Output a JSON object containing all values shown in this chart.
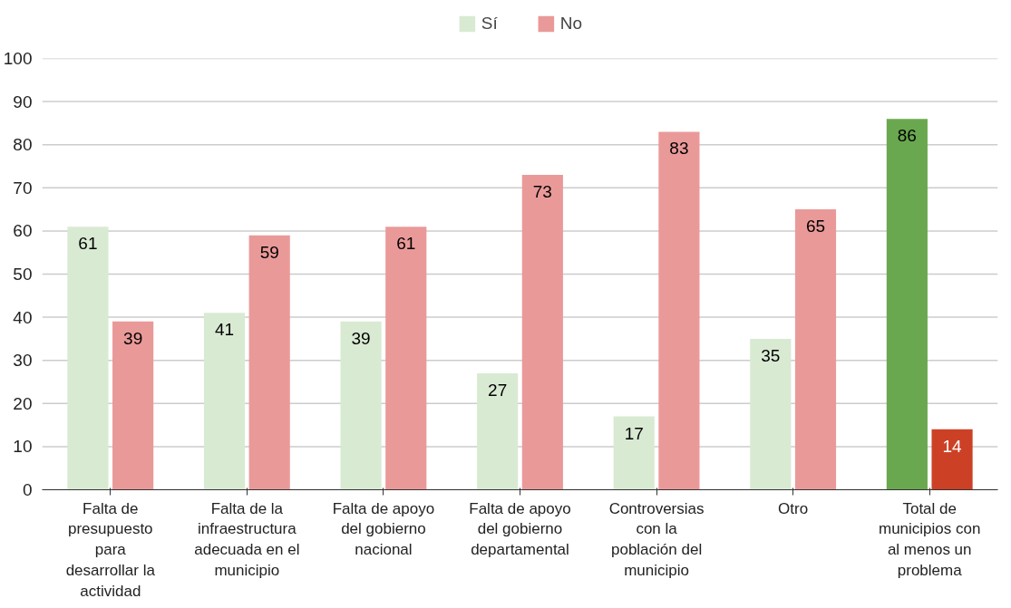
{
  "chart_data": {
    "type": "bar",
    "categories": [
      "Falta de presupuesto para desarrollar la actividad",
      "Falta de la infraestructura adecuada en el municipio",
      "Falta de apoyo del gobierno nacional",
      "Falta de apoyo del gobierno departamental",
      "Controversias con la población del municipio",
      "Otro",
      "Total de municipios con al menos un problema"
    ],
    "series": [
      {
        "name": "Sí",
        "color": "#d9ead3",
        "colors": [
          "#d9ead3",
          "#d9ead3",
          "#d9ead3",
          "#d9ead3",
          "#d9ead3",
          "#d9ead3",
          "#6aa84f"
        ],
        "values": [
          61,
          41,
          39,
          27,
          17,
          35,
          86
        ]
      },
      {
        "name": "No",
        "color": "#ea9999",
        "colors": [
          "#ea9999",
          "#ea9999",
          "#ea9999",
          "#ea9999",
          "#ea9999",
          "#ea9999",
          "#cc4125"
        ],
        "values": [
          39,
          59,
          61,
          73,
          83,
          65,
          14
        ]
      }
    ],
    "ylim": [
      0,
      100
    ],
    "yticks": [
      0,
      10,
      20,
      30,
      40,
      50,
      60,
      70,
      80,
      90,
      100
    ],
    "grid": "y",
    "legend": "top",
    "data_labels": true
  }
}
